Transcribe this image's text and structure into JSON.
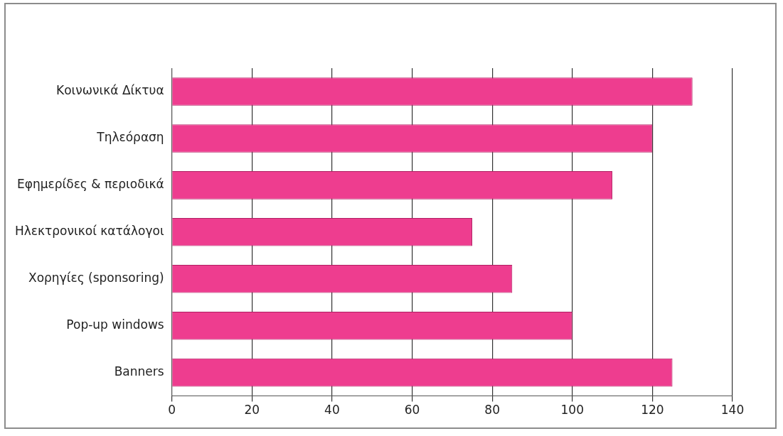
{
  "chart_data": {
    "type": "bar",
    "orientation": "horizontal",
    "categories": [
      "Κοινωνικά Δίκτυα",
      "Τηλεόραση",
      "Εφημερίδες & περιοδικά",
      "Ηλεκτρονικοί κατάλογοι",
      "Χορηγίες (sponsoring)",
      "Pop-up windows",
      "Banners"
    ],
    "values": [
      130,
      120,
      110,
      75,
      85,
      100,
      125
    ],
    "color": "#ee3d8f",
    "xlim": [
      0,
      140
    ],
    "xticks": [
      0,
      20,
      40,
      60,
      80,
      100,
      120,
      140
    ],
    "grid": "x"
  }
}
